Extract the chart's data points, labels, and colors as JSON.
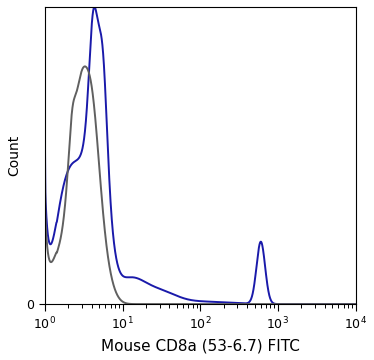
{
  "xlabel": "Mouse CD8a (53-6.7) FITC",
  "ylabel": "Count",
  "background_color": "#ffffff",
  "blue_color": "#1a1aaa",
  "gray_color": "#606060",
  "linewidth": 1.4,
  "xlabel_fontsize": 11,
  "ylabel_fontsize": 10,
  "tick_fontsize": 9,
  "comment": "log10 x axis from 0 to 4. Main peak near log10=0.7, second blue peak near log10=2.8. Gray drops before 10^1."
}
